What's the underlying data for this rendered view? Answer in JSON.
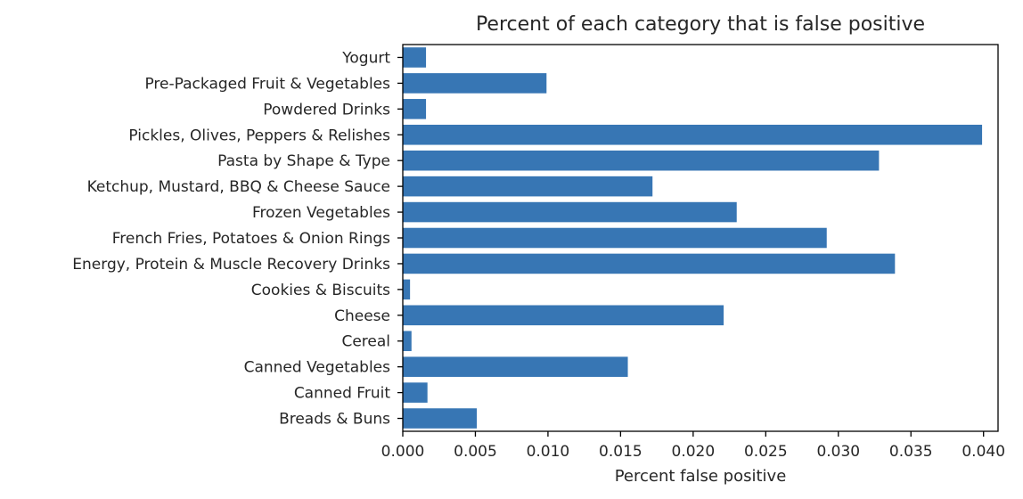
{
  "chart_data": {
    "type": "bar",
    "orientation": "horizontal",
    "title": "Percent of each category that is false positive",
    "xlabel": "Percent false positive",
    "ylabel": "",
    "xlim": [
      0,
      0.041
    ],
    "xticks": [
      0.0,
      0.005,
      0.01,
      0.015,
      0.02,
      0.025,
      0.03,
      0.035,
      0.04
    ],
    "xtick_labels": [
      "0.000",
      "0.005",
      "0.010",
      "0.015",
      "0.020",
      "0.025",
      "0.030",
      "0.035",
      "0.040"
    ],
    "bar_color": "#3776b4",
    "grid": false,
    "categories": [
      "Breads & Buns",
      "Canned Fruit",
      "Canned Vegetables",
      "Cereal",
      "Cheese",
      "Cookies & Biscuits",
      "Energy, Protein & Muscle Recovery Drinks",
      "French Fries, Potatoes & Onion Rings",
      "Frozen Vegetables",
      "Ketchup, Mustard, BBQ & Cheese Sauce",
      "Pasta by Shape & Type",
      "Pickles, Olives, Peppers & Relishes",
      "Powdered Drinks",
      "Pre-Packaged Fruit & Vegetables",
      "Yogurt"
    ],
    "values": [
      0.0051,
      0.0017,
      0.0155,
      0.0006,
      0.0221,
      0.0005,
      0.0339,
      0.0292,
      0.023,
      0.0172,
      0.0328,
      0.0399,
      0.0016,
      0.0099,
      0.0016
    ]
  }
}
